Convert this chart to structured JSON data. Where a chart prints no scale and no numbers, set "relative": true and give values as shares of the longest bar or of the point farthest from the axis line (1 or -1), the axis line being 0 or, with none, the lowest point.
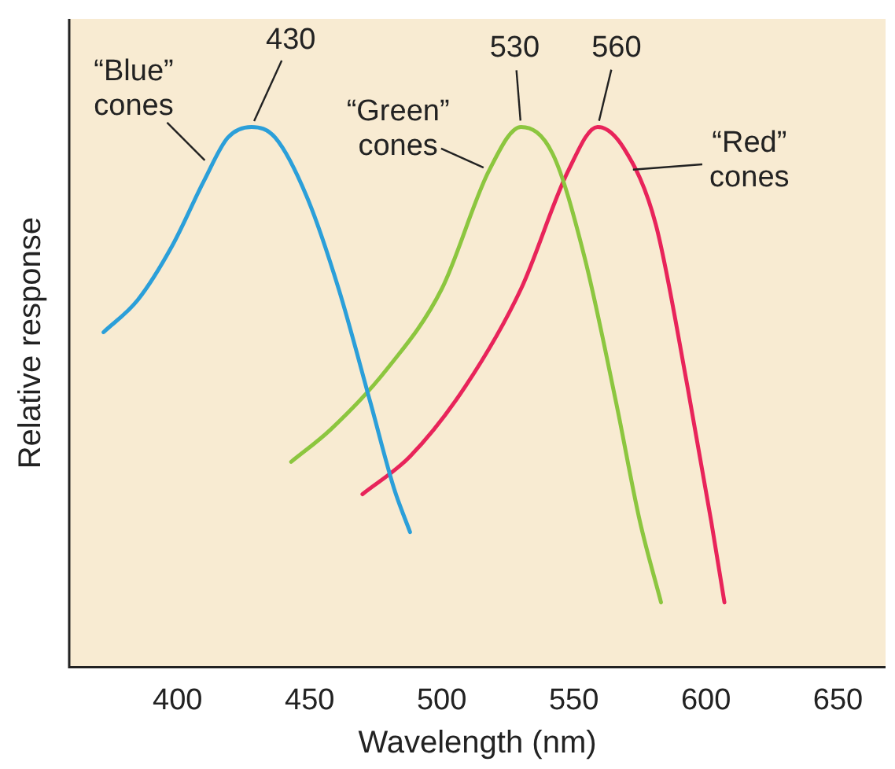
{
  "chart_data": {
    "type": "line",
    "xlabel": "Wavelength (nm)",
    "ylabel": "Relative response",
    "relative": true,
    "xlim": [
      359,
      668
    ],
    "xticks": [
      400,
      450,
      500,
      550,
      600,
      650
    ],
    "tick_labels": "x",
    "grid": false,
    "legend": false,
    "marker": "none",
    "line_style": "solid",
    "series": [
      {
        "color": "#2b9fd9",
        "x": [
          372,
          385,
          398,
          410,
          419,
          428,
          437,
          449,
          461,
          473,
          482,
          488
        ],
        "values": [
          0.62,
          0.68,
          0.78,
          0.9,
          0.98,
          1.0,
          0.98,
          0.87,
          0.7,
          0.49,
          0.33,
          0.25
        ]
      },
      {
        "color": "#8cc63f",
        "x": [
          443,
          458,
          479,
          500,
          518,
          530,
          542,
          554,
          566,
          575,
          583
        ],
        "values": [
          0.38,
          0.44,
          0.55,
          0.7,
          0.92,
          1.0,
          0.95,
          0.76,
          0.49,
          0.27,
          0.12
        ]
      },
      {
        "color": "#e8245a",
        "x": [
          470,
          488,
          509,
          530,
          548,
          559,
          569,
          581,
          593,
          602,
          607
        ],
        "values": [
          0.32,
          0.39,
          0.52,
          0.7,
          0.92,
          1.0,
          0.96,
          0.82,
          0.52,
          0.27,
          0.12
        ]
      }
    ],
    "annotations": [
      {
        "text": "430",
        "x": 428,
        "y": 1.0
      },
      {
        "text": "530",
        "x": 530,
        "y": 1.0
      },
      {
        "text": "560",
        "x": 559,
        "y": 1.0
      },
      {
        "text": "“Blue” cones",
        "x": 412,
        "y": 0.93
      },
      {
        "text": "“Green” cones",
        "x": 518,
        "y": 0.92
      },
      {
        "text": "“Red” cones",
        "x": 570,
        "y": 0.92
      }
    ]
  }
}
